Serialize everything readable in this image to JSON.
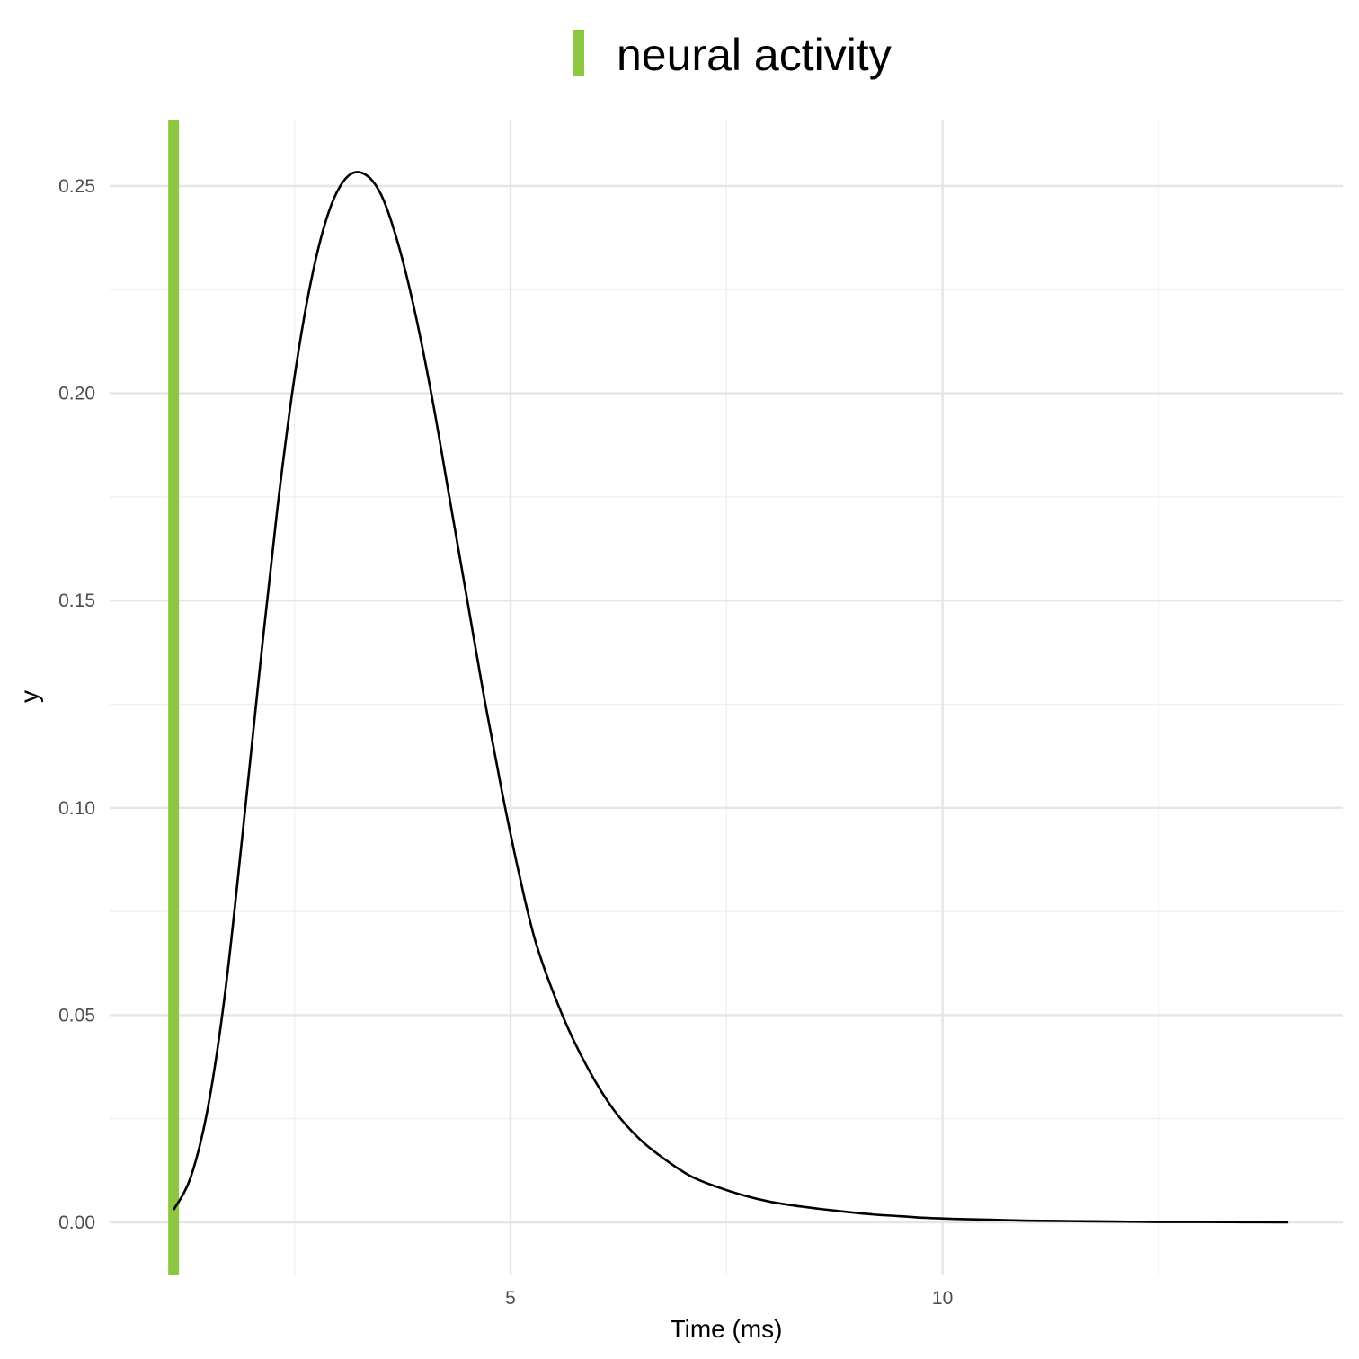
{
  "chart_data": {
    "type": "line",
    "xlabel": "Time (ms)",
    "ylabel": "y",
    "xlim": [
      0.85,
      14.0
    ],
    "ylim": [
      -0.0125,
      0.2635
    ],
    "x_major_ticks": [
      5,
      10
    ],
    "x_minor_ticks": [
      2.5,
      7.5,
      12.5
    ],
    "y_major_ticks": [
      0.0,
      0.05,
      0.1,
      0.15,
      0.2,
      0.25
    ],
    "y_minor_ticks": [
      0.025,
      0.075,
      0.125,
      0.175,
      0.225
    ],
    "x_tick_labels": [
      "5",
      "10"
    ],
    "y_tick_labels": [
      "0.00",
      "0.05",
      "0.10",
      "0.15",
      "0.20",
      "0.25"
    ],
    "grid": true,
    "legend": {
      "position": "top",
      "entries": [
        {
          "label": "neural activity",
          "color": "#8dc63f"
        }
      ]
    },
    "vline": {
      "x": 1.1,
      "color": "#8dc63f",
      "series": "neural activity"
    },
    "series": [
      {
        "color": "#000000",
        "x": [
          1.1,
          1.3,
          1.5,
          1.7,
          1.9,
          2.1,
          2.3,
          2.5,
          2.7,
          2.9,
          3.1,
          3.3,
          3.5,
          3.7,
          3.9,
          4.1,
          4.3,
          4.5,
          4.7,
          4.9,
          5.1,
          5.3,
          5.6,
          5.9,
          6.2,
          6.5,
          6.8,
          7.1,
          7.4,
          7.7,
          8.0,
          8.3,
          8.6,
          8.9,
          9.2,
          9.5,
          9.8,
          10.2,
          10.6,
          11.0,
          11.5,
          12.0,
          12.5,
          13.0,
          13.5,
          14.0
        ],
        "y": [
          0.003,
          0.011,
          0.028,
          0.056,
          0.094,
          0.134,
          0.172,
          0.204,
          0.228,
          0.244,
          0.252,
          0.253,
          0.248,
          0.236,
          0.219,
          0.198,
          0.174,
          0.15,
          0.126,
          0.104,
          0.084,
          0.067,
          0.05,
          0.037,
          0.027,
          0.02,
          0.015,
          0.011,
          0.0085,
          0.0065,
          0.005,
          0.004,
          0.0032,
          0.0025,
          0.0019,
          0.0015,
          0.0011,
          0.0008,
          0.0006,
          0.0004,
          0.0003,
          0.0002,
          0.0001,
          0.0001,
          5e-05,
          0.0
        ]
      }
    ]
  }
}
